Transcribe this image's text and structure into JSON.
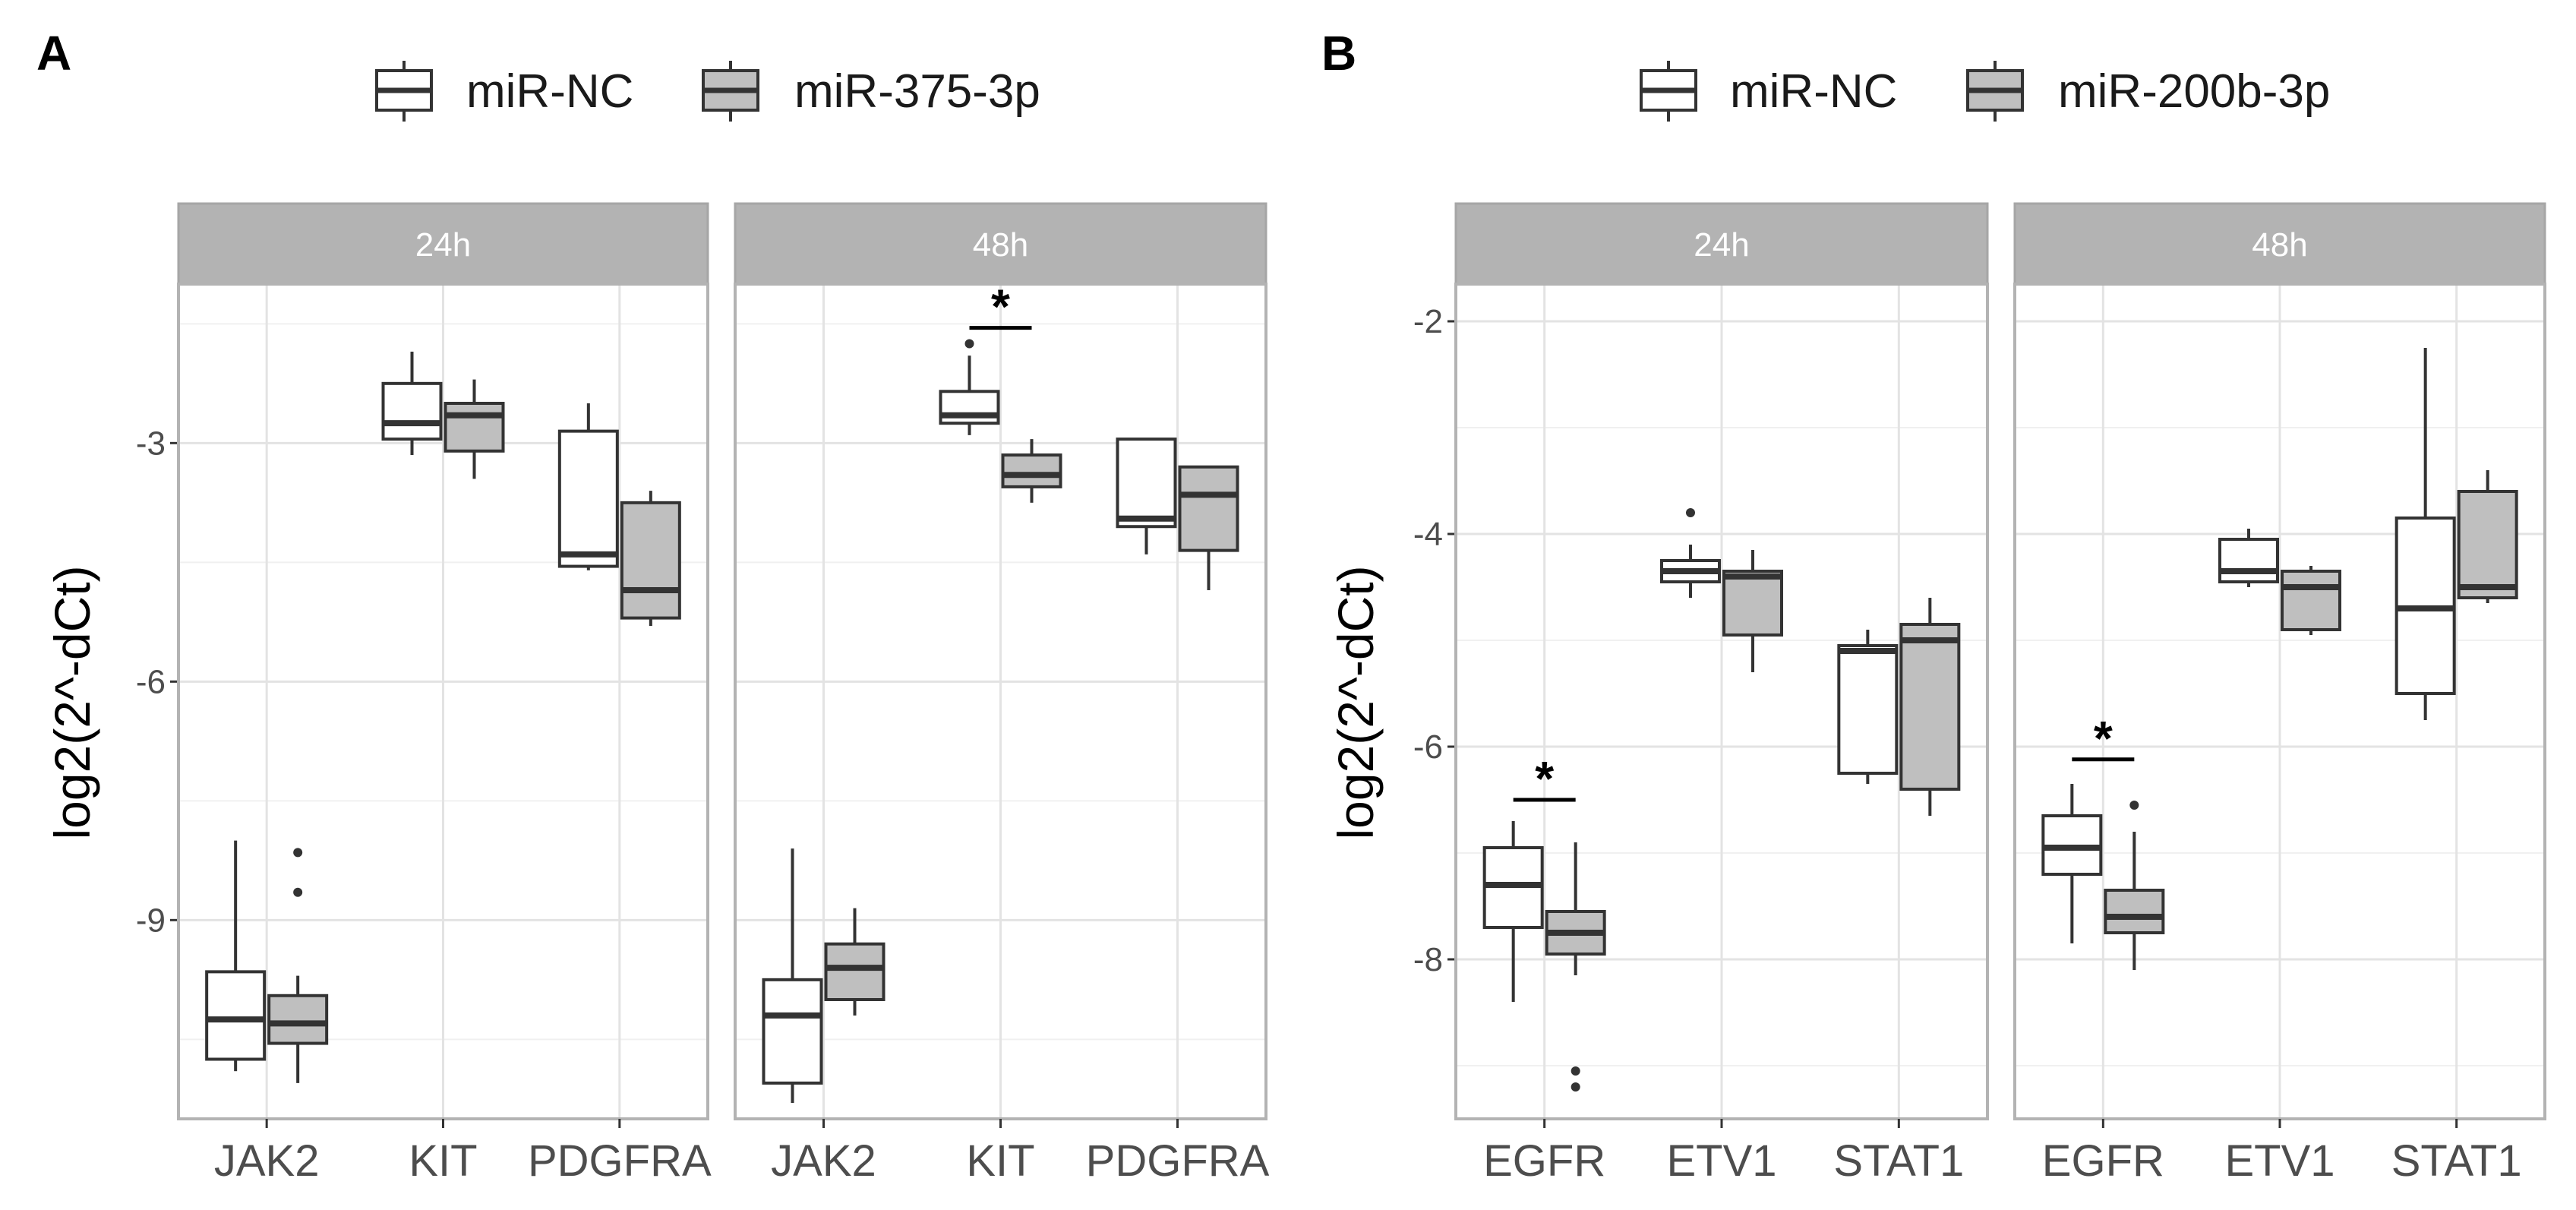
{
  "chart_data": [
    {
      "type": "boxplot",
      "panel_label": "A",
      "ylabel": "log2(2^-dCt)",
      "ylim": [
        -11.5,
        -1.0
      ],
      "yticks": [
        -3,
        -6,
        -9
      ],
      "categories": [
        "JAK2",
        "KIT",
        "PDGFRA"
      ],
      "legend": {
        "position": "top",
        "entries": [
          {
            "name": "miR-NC",
            "color": "#ffffff"
          },
          {
            "name": "miR-375-3p",
            "color": "#bfbfbf"
          }
        ]
      },
      "facets": [
        {
          "label": "24h",
          "boxes": [
            {
              "category": "JAK2",
              "series": "miR-NC",
              "whisker_low": -10.9,
              "q1": -10.75,
              "median": -10.25,
              "q3": -9.65,
              "whisker_high": -8.0,
              "outliers": []
            },
            {
              "category": "JAK2",
              "series": "miR-375-3p",
              "whisker_low": -11.05,
              "q1": -10.55,
              "median": -10.3,
              "q3": -9.95,
              "whisker_high": -9.7,
              "outliers": [
                -8.15,
                -8.65
              ]
            },
            {
              "category": "KIT",
              "series": "miR-NC",
              "whisker_low": -3.15,
              "q1": -2.95,
              "median": -2.75,
              "q3": -2.25,
              "whisker_high": -1.85,
              "outliers": []
            },
            {
              "category": "KIT",
              "series": "miR-375-3p",
              "whisker_low": -3.45,
              "q1": -3.1,
              "median": -2.65,
              "q3": -2.5,
              "whisker_high": -2.2,
              "outliers": []
            },
            {
              "category": "PDGFRA",
              "series": "miR-NC",
              "whisker_low": -4.6,
              "q1": -4.55,
              "median": -4.4,
              "q3": -2.85,
              "whisker_high": -2.5,
              "outliers": []
            },
            {
              "category": "PDGFRA",
              "series": "miR-375-3p",
              "whisker_low": -5.3,
              "q1": -5.2,
              "median": -4.85,
              "q3": -3.75,
              "whisker_high": -3.6,
              "outliers": []
            }
          ],
          "significance": []
        },
        {
          "label": "48h",
          "boxes": [
            {
              "category": "JAK2",
              "series": "miR-NC",
              "whisker_low": -11.3,
              "q1": -11.05,
              "median": -10.2,
              "q3": -9.75,
              "whisker_high": -8.1,
              "outliers": []
            },
            {
              "category": "JAK2",
              "series": "miR-375-3p",
              "whisker_low": -10.2,
              "q1": -10.0,
              "median": -9.6,
              "q3": -9.3,
              "whisker_high": -8.85,
              "outliers": []
            },
            {
              "category": "KIT",
              "series": "miR-NC",
              "whisker_low": -2.9,
              "q1": -2.75,
              "median": -2.65,
              "q3": -2.35,
              "whisker_high": -1.9,
              "outliers": [
                -1.75
              ]
            },
            {
              "category": "KIT",
              "series": "miR-375-3p",
              "whisker_low": -3.75,
              "q1": -3.55,
              "median": -3.4,
              "q3": -3.15,
              "whisker_high": -2.95,
              "outliers": []
            },
            {
              "category": "PDGFRA",
              "series": "miR-NC",
              "whisker_low": -4.4,
              "q1": -4.05,
              "median": -3.95,
              "q3": -2.95,
              "whisker_high": -2.95,
              "outliers": []
            },
            {
              "category": "PDGFRA",
              "series": "miR-375-3p",
              "whisker_low": -4.85,
              "q1": -4.35,
              "median": -3.65,
              "q3": -3.3,
              "whisker_high": -3.3,
              "outliers": []
            }
          ],
          "significance": [
            {
              "category": "KIT",
              "label": "*",
              "y": -1.55
            }
          ]
        }
      ]
    },
    {
      "type": "boxplot",
      "panel_label": "B",
      "ylabel": "log2(2^-dCt)",
      "ylim": [
        -9.5,
        -1.65
      ],
      "yticks": [
        -2,
        -4,
        -6,
        -8
      ],
      "categories": [
        "EGFR",
        "ETV1",
        "STAT1"
      ],
      "legend": {
        "position": "top",
        "entries": [
          {
            "name": "miR-NC",
            "color": "#ffffff"
          },
          {
            "name": "miR-200b-3p",
            "color": "#bfbfbf"
          }
        ]
      },
      "facets": [
        {
          "label": "24h",
          "boxes": [
            {
              "category": "EGFR",
              "series": "miR-NC",
              "whisker_low": -8.4,
              "q1": -7.7,
              "median": -7.3,
              "q3": -6.95,
              "whisker_high": -6.7,
              "outliers": []
            },
            {
              "category": "EGFR",
              "series": "miR-200b-3p",
              "whisker_low": -8.15,
              "q1": -7.95,
              "median": -7.75,
              "q3": -7.55,
              "whisker_high": -6.9,
              "outliers": [
                -9.05,
                -9.2
              ]
            },
            {
              "category": "ETV1",
              "series": "miR-NC",
              "whisker_low": -4.6,
              "q1": -4.45,
              "median": -4.35,
              "q3": -4.25,
              "whisker_high": -4.1,
              "outliers": [
                -3.8
              ]
            },
            {
              "category": "ETV1",
              "series": "miR-200b-3p",
              "whisker_low": -5.3,
              "q1": -4.95,
              "median": -4.4,
              "q3": -4.35,
              "whisker_high": -4.15,
              "outliers": []
            },
            {
              "category": "STAT1",
              "series": "miR-NC",
              "whisker_low": -6.35,
              "q1": -6.25,
              "median": -5.1,
              "q3": -5.05,
              "whisker_high": -4.9,
              "outliers": []
            },
            {
              "category": "STAT1",
              "series": "miR-200b-3p",
              "whisker_low": -6.65,
              "q1": -6.4,
              "median": -5.0,
              "q3": -4.85,
              "whisker_high": -4.6,
              "outliers": []
            }
          ],
          "significance": [
            {
              "category": "EGFR",
              "label": "*",
              "y": -6.5
            }
          ]
        },
        {
          "label": "48h",
          "boxes": [
            {
              "category": "EGFR",
              "series": "miR-NC",
              "whisker_low": -7.85,
              "q1": -7.2,
              "median": -6.95,
              "q3": -6.65,
              "whisker_high": -6.35,
              "outliers": []
            },
            {
              "category": "EGFR",
              "series": "miR-200b-3p",
              "whisker_low": -8.1,
              "q1": -7.75,
              "median": -7.6,
              "q3": -7.35,
              "whisker_high": -6.8,
              "outliers": [
                -6.55
              ]
            },
            {
              "category": "ETV1",
              "series": "miR-NC",
              "whisker_low": -4.5,
              "q1": -4.45,
              "median": -4.35,
              "q3": -4.05,
              "whisker_high": -3.95,
              "outliers": []
            },
            {
              "category": "ETV1",
              "series": "miR-200b-3p",
              "whisker_low": -4.95,
              "q1": -4.9,
              "median": -4.5,
              "q3": -4.35,
              "whisker_high": -4.3,
              "outliers": []
            },
            {
              "category": "STAT1",
              "series": "miR-NC",
              "whisker_low": -5.75,
              "q1": -5.5,
              "median": -4.7,
              "q3": -3.85,
              "whisker_high": -2.25,
              "outliers": []
            },
            {
              "category": "STAT1",
              "series": "miR-200b-3p",
              "whisker_low": -4.65,
              "q1": -4.6,
              "median": -4.5,
              "q3": -3.6,
              "whisker_high": -3.4,
              "outliers": []
            }
          ],
          "significance": [
            {
              "category": "EGFR",
              "label": "*",
              "y": -6.12
            }
          ]
        }
      ]
    }
  ]
}
